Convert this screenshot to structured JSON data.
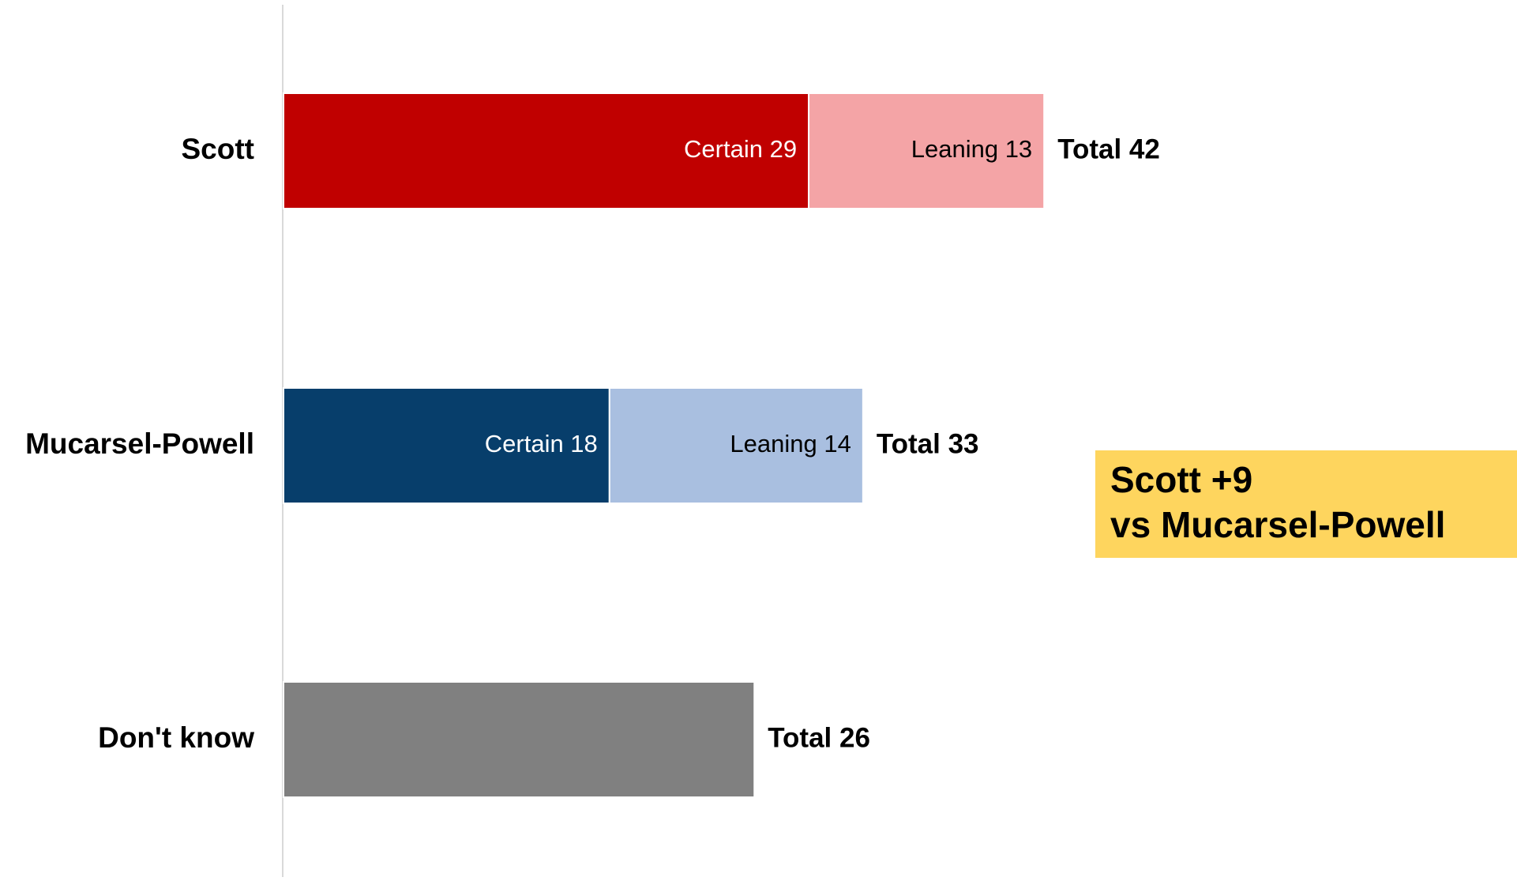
{
  "chart_data": {
    "type": "stacked_bar_horizontal",
    "categories": [
      "Scott",
      "Mucarsel-Powell",
      "Don't know"
    ],
    "series": [
      {
        "colors": [
          "#c00000",
          "#073e6b",
          "#808080"
        ],
        "values": [
          29,
          18,
          26
        ],
        "value_labels": [
          "Certain 29",
          "Certain 18",
          null
        ]
      },
      {
        "colors": [
          "#f4a4a6",
          "#a9bfe0",
          null
        ],
        "values": [
          13,
          14,
          null
        ],
        "value_labels": [
          "Leaning 13",
          "Leaning 14",
          null
        ]
      }
    ],
    "totals": [
      42,
      33,
      26
    ],
    "total_labels": [
      "Total 42",
      "Total 33",
      "Total 26"
    ],
    "xlim": [
      0,
      60
    ],
    "annotation": {
      "lines": [
        "Scott +9",
        "vs Mucarsel-Powell"
      ],
      "color": "#fed55e"
    }
  }
}
